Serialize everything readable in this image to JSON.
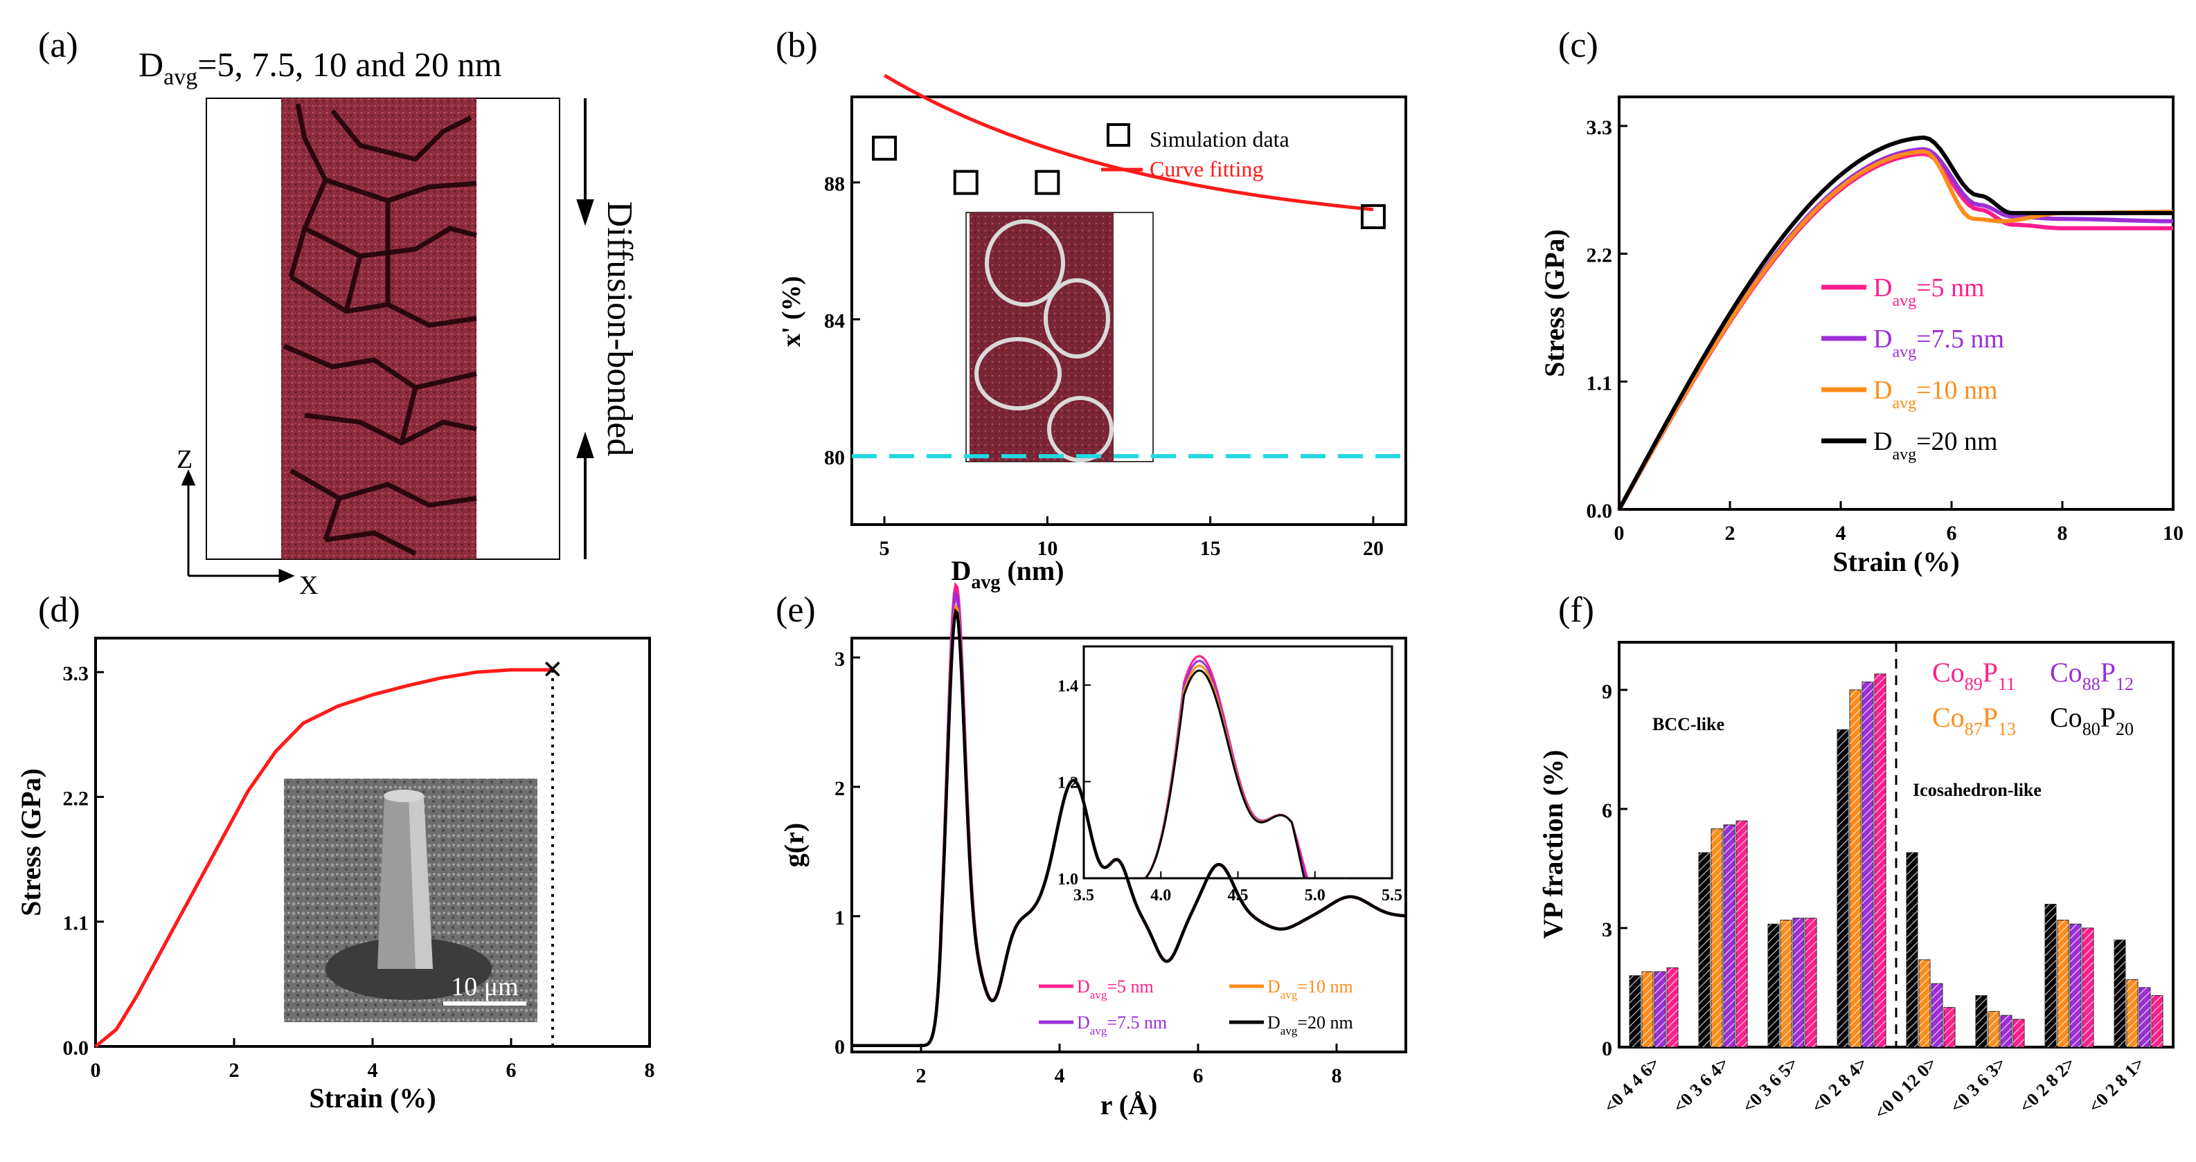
{
  "colors": {
    "pink": "#ff1e8c",
    "purple": "#9b2fd6",
    "orange": "#ff8c1a",
    "black": "#000000",
    "red": "#ff1a1a",
    "cyan": "#22d8e0",
    "maroon": "#8b2a3a"
  },
  "panel_a": {
    "label": "(a)",
    "title_pre": "D",
    "title_sub": "avg",
    "title_post": "=5, 7.5, 10 and 20 nm",
    "axis_z": "Z",
    "axis_x": "X",
    "side_text": "Diffusion-bonded"
  },
  "chart_data": [
    {
      "id": "b",
      "type": "scatter",
      "label": "(b)",
      "xlabel_main": "D",
      "xlabel_sub": "avg",
      "xlabel_unit": " (nm)",
      "ylabel": "x' (%)",
      "xlim": [
        4,
        21
      ],
      "ylim": [
        78,
        90.5
      ],
      "xticks": [
        5,
        10,
        15,
        20
      ],
      "yticks": [
        80,
        84,
        88
      ],
      "points": {
        "x": [
          5,
          7.5,
          10,
          20
        ],
        "y": [
          89,
          88,
          88,
          87
        ]
      },
      "fit": {
        "a": 86.43,
        "b": 4.7,
        "c": 0.12
      },
      "reference_line": 80,
      "legend": [
        "Simulation data",
        "Curve fitting"
      ]
    },
    {
      "id": "c",
      "type": "line",
      "label": "(c)",
      "xlabel": "Strain (%)",
      "ylabel": "Stress (GPa)",
      "xlim": [
        0,
        10
      ],
      "ylim": [
        0,
        3.55
      ],
      "xticks": [
        0,
        2,
        4,
        6,
        8,
        10
      ],
      "yticks": [
        "0.0",
        "1.1",
        "2.2",
        "3.3"
      ],
      "series": [
        {
          "name_pre": "D",
          "name_sub": "avg",
          "name_post": "=5 nm",
          "color": "#ff1e8c",
          "peak": [
            5.5,
            3.06
          ],
          "x_after": [
            6.5,
            7.1,
            8,
            10
          ],
          "y_after": [
            2.58,
            2.45,
            2.42,
            2.42
          ]
        },
        {
          "name_pre": "D",
          "name_sub": "avg",
          "name_post": "=7.5 nm",
          "color": "#9b2fd6",
          "peak": [
            5.5,
            3.1
          ],
          "x_after": [
            6.5,
            7.1,
            8,
            10
          ],
          "y_after": [
            2.62,
            2.52,
            2.5,
            2.48
          ]
        },
        {
          "name_pre": "D",
          "name_sub": "avg",
          "name_post": "=10 nm",
          "color": "#ff8c1a",
          "peak": [
            5.5,
            3.08
          ],
          "x_after": [
            6.4,
            6.9,
            8,
            10
          ],
          "y_after": [
            2.5,
            2.48,
            2.55,
            2.56
          ]
        },
        {
          "name_pre": "D",
          "name_sub": "avg",
          "name_post": "=20 nm",
          "color": "#000000",
          "peak": [
            5.5,
            3.2
          ],
          "x_after": [
            6.5,
            7.1,
            8,
            10
          ],
          "y_after": [
            2.7,
            2.55,
            2.55,
            2.55
          ]
        }
      ]
    },
    {
      "id": "d",
      "type": "line",
      "label": "(d)",
      "xlabel": "Strain (%)",
      "ylabel": "Stress (GPa)",
      "xlim": [
        0,
        8
      ],
      "ylim": [
        0,
        3.6
      ],
      "xticks": [
        0,
        2,
        4,
        6,
        8
      ],
      "yticks": [
        "0.0",
        "1.1",
        "2.2",
        "3.3"
      ],
      "x": [
        0,
        0.3,
        0.6,
        1.0,
        1.4,
        1.8,
        2.2,
        2.6,
        3.0,
        3.5,
        4.0,
        4.5,
        5.0,
        5.5,
        6.0,
        6.6
      ],
      "y": [
        0,
        0.15,
        0.45,
        0.9,
        1.35,
        1.8,
        2.25,
        2.6,
        2.85,
        3.0,
        3.1,
        3.18,
        3.25,
        3.3,
        3.32,
        3.32
      ],
      "fracture_x": 6.6,
      "inset_scale": "10 μm"
    },
    {
      "id": "e",
      "type": "line",
      "label": "(e)",
      "xlabel": "r (Å)",
      "ylabel": "g(r)",
      "xlim": [
        1,
        9
      ],
      "ylim": [
        -0.05,
        3.15
      ],
      "xticks": [
        2,
        4,
        6,
        8
      ],
      "yticks": [
        0,
        1,
        2,
        3
      ],
      "peaks": [
        [
          2.5,
          2.95,
          0.18
        ],
        [
          3.05,
          -0.55,
          0.22
        ],
        [
          4.2,
          1.05,
          0.35
        ],
        [
          4.85,
          0.4,
          0.22
        ],
        [
          5.55,
          -0.35,
          0.25
        ],
        [
          6.3,
          0.4,
          0.3
        ],
        [
          7.2,
          -0.1,
          0.35
        ],
        [
          8.2,
          0.15,
          0.4
        ]
      ],
      "series": [
        {
          "name_pre": "D",
          "name_sub": "avg",
          "name_post": "=5 nm",
          "color": "#ff1e8c",
          "scale": 1.06
        },
        {
          "name_pre": "D",
          "name_sub": "avg",
          "name_post": "=7.5 nm",
          "color": "#9b2fd6",
          "scale": 1.04
        },
        {
          "name_pre": "D",
          "name_sub": "avg",
          "name_post": "=10 nm",
          "color": "#ff8c1a",
          "scale": 1.01
        },
        {
          "name_pre": "D",
          "name_sub": "avg",
          "name_post": "=20 nm",
          "color": "#000000",
          "scale": 1.0
        }
      ],
      "inset": {
        "xlim": [
          3.5,
          5.5
        ],
        "ylim": [
          1.0,
          1.48
        ],
        "xticks": [
          "3.5",
          "4.0",
          "4.5",
          "5.0",
          "5.5"
        ],
        "yticks": [
          "1.0",
          "1.2",
          "1.4"
        ]
      }
    },
    {
      "id": "f",
      "type": "bar",
      "label": "(f)",
      "ylabel": "VP fraction (%)",
      "ylim": [
        0,
        10.2
      ],
      "yticks": [
        0,
        3,
        6,
        9
      ],
      "categories": [
        "<0 4 4 6>",
        "<0 3 6 4>",
        "<0 3 6 5>",
        "<0 2 8 4>",
        "<0 0 12 0>",
        "<0 3 6 3>",
        "<0 2 8 2>",
        "<0 2 8 1>"
      ],
      "series": [
        {
          "name": "Co80P20",
          "base": "Co",
          "sub1": "80",
          "mid": "P",
          "sub2": "20",
          "color": "#000000",
          "values": [
            1.8,
            4.9,
            3.1,
            8.0,
            4.9,
            1.3,
            3.6,
            2.7
          ]
        },
        {
          "name": "Co87P13",
          "base": "Co",
          "sub1": "87",
          "mid": "P",
          "sub2": "13",
          "color": "#ff8c1a",
          "values": [
            1.9,
            5.5,
            3.2,
            9.0,
            2.2,
            0.9,
            3.2,
            1.7
          ]
        },
        {
          "name": "Co88P12",
          "base": "Co",
          "sub1": "88",
          "mid": "P",
          "sub2": "12",
          "color": "#9b2fd6",
          "values": [
            1.9,
            5.6,
            3.25,
            9.2,
            1.6,
            0.8,
            3.1,
            1.5
          ]
        },
        {
          "name": "Co89P11",
          "base": "Co",
          "sub1": "89",
          "mid": "P",
          "sub2": "11",
          "color": "#ff1e8c",
          "values": [
            2.0,
            5.7,
            3.25,
            9.4,
            1.0,
            0.7,
            3.0,
            1.3
          ]
        }
      ],
      "annotations": [
        "BCC-like",
        "Icosahedron-like"
      ]
    }
  ]
}
